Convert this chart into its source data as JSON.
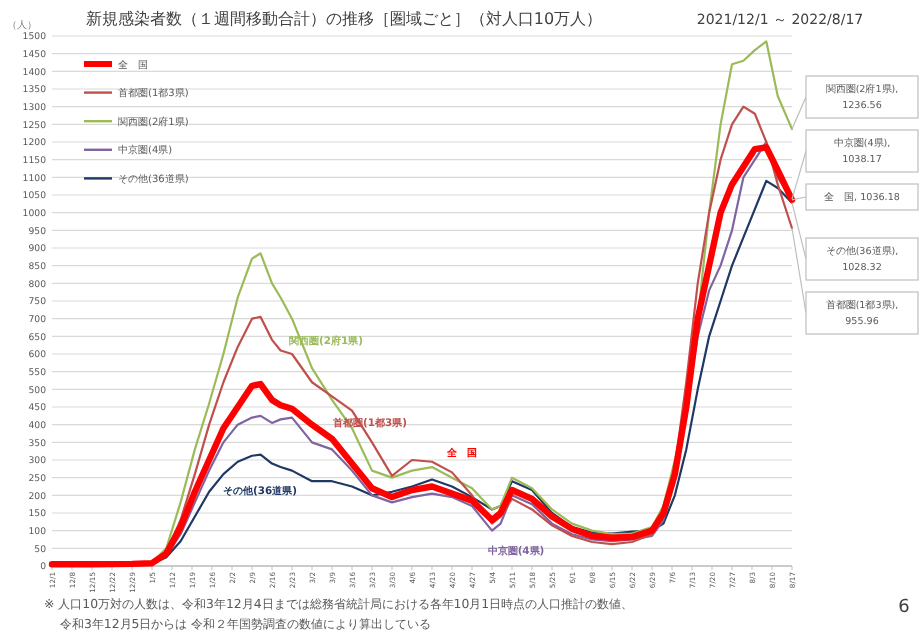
{
  "chart_data": {
    "type": "line",
    "title": "新規感染者数（１週間移動合計）の推移［圏域ごと］（対人口10万人）",
    "subtitle": "2021/12/1 ～ 2022/8/17",
    "ylabel": "（人）",
    "x": [
      "2021-12-01",
      "2021-12-15",
      "2021-12-29",
      "2022-01-05",
      "2022-01-10",
      "2022-01-15",
      "2022-01-20",
      "2022-01-25",
      "2022-01-30",
      "2022-02-04",
      "2022-02-09",
      "2022-02-12",
      "2022-02-16",
      "2022-02-19",
      "2022-02-23",
      "2022-03-02",
      "2022-03-09",
      "2022-03-16",
      "2022-03-23",
      "2022-03-30",
      "2022-04-06",
      "2022-04-13",
      "2022-04-20",
      "2022-04-27",
      "2022-05-04",
      "2022-05-07",
      "2022-05-11",
      "2022-05-18",
      "2022-05-25",
      "2022-06-01",
      "2022-06-08",
      "2022-06-15",
      "2022-06-22",
      "2022-06-29",
      "2022-07-03",
      "2022-07-07",
      "2022-07-11",
      "2022-07-15",
      "2022-07-19",
      "2022-07-23",
      "2022-07-27",
      "2022-07-31",
      "2022-08-04",
      "2022-08-08",
      "2022-08-12",
      "2022-08-17"
    ],
    "series": [
      {
        "name": "全　国",
        "color": "#ff0000",
        "values": [
          5,
          5,
          6,
          8,
          35,
          110,
          210,
          300,
          390,
          450,
          510,
          515,
          470,
          455,
          445,
          400,
          360,
          290,
          220,
          195,
          215,
          225,
          205,
          185,
          130,
          150,
          215,
          190,
          140,
          105,
          85,
          80,
          82,
          100,
          150,
          260,
          450,
          700,
          850,
          1000,
          1080,
          1130,
          1180,
          1185,
          1120,
          1036.18
        ]
      },
      {
        "name": "首都圏(1都3県)",
        "color": "#c0504d",
        "values": [
          5,
          5,
          6,
          8,
          40,
          130,
          260,
          400,
          520,
          620,
          700,
          705,
          640,
          610,
          600,
          520,
          480,
          440,
          350,
          255,
          300,
          295,
          265,
          200,
          120,
          140,
          190,
          160,
          115,
          85,
          68,
          62,
          68,
          90,
          140,
          280,
          520,
          800,
          1000,
          1150,
          1250,
          1300,
          1280,
          1200,
          1080,
          955.96
        ]
      },
      {
        "name": "関西圏(2府1県)",
        "color": "#9bbb59",
        "values": [
          null,
          null,
          6,
          10,
          50,
          180,
          330,
          460,
          600,
          760,
          870,
          885,
          800,
          760,
          700,
          560,
          470,
          390,
          270,
          250,
          270,
          280,
          250,
          220,
          160,
          170,
          250,
          220,
          160,
          120,
          100,
          90,
          92,
          110,
          170,
          300,
          420,
          700,
          1000,
          1250,
          1420,
          1430,
          1460,
          1485,
          1330,
          1236.56
        ]
      },
      {
        "name": "中京圏(4県)",
        "color": "#8064a2",
        "values": [
          null,
          null,
          5,
          8,
          30,
          90,
          180,
          270,
          350,
          400,
          420,
          425,
          405,
          415,
          420,
          350,
          330,
          270,
          200,
          180,
          195,
          205,
          195,
          170,
          100,
          120,
          200,
          175,
          120,
          90,
          75,
          70,
          75,
          85,
          130,
          240,
          450,
          650,
          780,
          850,
          950,
          1100,
          1150,
          1200,
          1100,
          1038.17
        ]
      },
      {
        "name": "その他(36道県)",
        "color": "#1f3864",
        "values": [
          null,
          null,
          null,
          6,
          25,
          70,
          140,
          210,
          260,
          295,
          312,
          315,
          290,
          280,
          270,
          240,
          240,
          225,
          200,
          210,
          225,
          245,
          225,
          195,
          160,
          170,
          240,
          215,
          150,
          110,
          95,
          92,
          97,
          100,
          120,
          200,
          330,
          500,
          650,
          750,
          850,
          930,
          1010,
          1090,
          1070,
          1028.32
        ]
      }
    ],
    "xlim": [
      "2021-12-01",
      "2022-08-17"
    ],
    "xticks": [
      {
        "value": "2021-12-01",
        "label": "12/1"
      },
      {
        "value": "2021-12-08",
        "label": "12/8"
      },
      {
        "value": "2021-12-15",
        "label": "12/15"
      },
      {
        "value": "2021-12-22",
        "label": "12/22"
      },
      {
        "value": "2021-12-29",
        "label": "12/29"
      },
      {
        "value": "2022-01-05",
        "label": "1/5"
      },
      {
        "value": "2022-01-12",
        "label": "1/12"
      },
      {
        "value": "2022-01-19",
        "label": "1/19"
      },
      {
        "value": "2022-01-26",
        "label": "1/26"
      },
      {
        "value": "2022-02-02",
        "label": "2/2"
      },
      {
        "value": "2022-02-09",
        "label": "2/9"
      },
      {
        "value": "2022-02-16",
        "label": "2/16"
      },
      {
        "value": "2022-02-23",
        "label": "2/23"
      },
      {
        "value": "2022-03-02",
        "label": "3/2"
      },
      {
        "value": "2022-03-09",
        "label": "3/9"
      },
      {
        "value": "2022-03-16",
        "label": "3/16"
      },
      {
        "value": "2022-03-23",
        "label": "3/23"
      },
      {
        "value": "2022-03-30",
        "label": "3/30"
      },
      {
        "value": "2022-04-06",
        "label": "4/6"
      },
      {
        "value": "2022-04-13",
        "label": "4/13"
      },
      {
        "value": "2022-04-20",
        "label": "4/20"
      },
      {
        "value": "2022-04-27",
        "label": "4/27"
      },
      {
        "value": "2022-05-04",
        "label": "5/4"
      },
      {
        "value": "2022-05-11",
        "label": "5/11"
      },
      {
        "value": "2022-05-18",
        "label": "5/18"
      },
      {
        "value": "2022-05-25",
        "label": "5/25"
      },
      {
        "value": "2022-06-01",
        "label": "6/1"
      },
      {
        "value": "2022-06-08",
        "label": "6/8"
      },
      {
        "value": "2022-06-15",
        "label": "6/15"
      },
      {
        "value": "2022-06-22",
        "label": "6/22"
      },
      {
        "value": "2022-06-29",
        "label": "6/29"
      },
      {
        "value": "2022-07-06",
        "label": "7/6"
      },
      {
        "value": "2022-07-13",
        "label": "7/13"
      },
      {
        "value": "2022-07-20",
        "label": "7/20"
      },
      {
        "value": "2022-07-27",
        "label": "7/27"
      },
      {
        "value": "2022-08-03",
        "label": "8/3"
      },
      {
        "value": "2022-08-10",
        "label": "8/10"
      },
      {
        "value": "2022-08-17",
        "label": "8/17"
      }
    ],
    "ylim": [
      0,
      1500
    ],
    "yticks": [
      0,
      50,
      100,
      150,
      200,
      250,
      300,
      350,
      400,
      450,
      500,
      550,
      600,
      650,
      700,
      750,
      800,
      850,
      900,
      950,
      1000,
      1050,
      1100,
      1150,
      1200,
      1250,
      1300,
      1350,
      1400,
      1450,
      1500
    ],
    "grid": "y",
    "legend": "top left",
    "marker": "none",
    "line_style": "solid",
    "annotations": [
      "関西圏(2府1県),\n1236.56",
      "中京圏(4県),\n1038.17",
      "全　国, 1036.18",
      "その他(36道県),\n1028.32",
      "首都圏(1都3県),\n955.96",
      "※ 人口10万対の人数は、令和3年12月4日までは総務省統計局における各年10月1日時点の人口推計の数値、",
      "令和3年12月5日からは 令和２年国勢調査の数値により算出している",
      "6"
    ]
  }
}
